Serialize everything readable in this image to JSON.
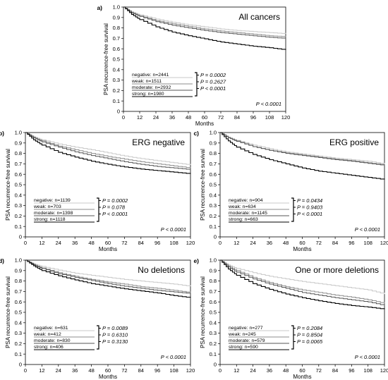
{
  "chart_data": [
    {
      "type": "line",
      "panel_label": "a)",
      "title": "All cancers",
      "xlabel": "Months",
      "ylabel": "PSA recurrence-free survival",
      "xlim": [
        0,
        120
      ],
      "ylim": [
        0,
        1.0
      ],
      "xticks": [
        "0",
        "12",
        "24",
        "36",
        "48",
        "60",
        "72",
        "84",
        "96",
        "108",
        "120"
      ],
      "yticks": [
        "0",
        "0.1",
        "0.2",
        "0.3",
        "0.4",
        "0.5",
        "0.6",
        "0.7",
        "0.8",
        "0.9",
        "1.0"
      ],
      "grid": false,
      "legend_position": "bottom-left",
      "overall_p": "P < 0.0001",
      "series": [
        {
          "name": "negative: n=2441",
          "color": "#c8c8c8",
          "x": [
            0,
            6,
            12,
            24,
            36,
            48,
            60,
            72,
            84,
            96,
            108,
            120
          ],
          "y": [
            1.0,
            0.955,
            0.925,
            0.885,
            0.855,
            0.83,
            0.81,
            0.79,
            0.775,
            0.765,
            0.755,
            0.745
          ]
        },
        {
          "name": "weak: n=1511",
          "color": "#8c8c8c",
          "x": [
            0,
            6,
            12,
            24,
            36,
            48,
            60,
            72,
            84,
            96,
            108,
            120
          ],
          "y": [
            1.0,
            0.95,
            0.915,
            0.87,
            0.84,
            0.815,
            0.79,
            0.77,
            0.755,
            0.74,
            0.725,
            0.715
          ]
        },
        {
          "name": "moderate: n=2932",
          "color": "#555555",
          "x": [
            0,
            6,
            12,
            24,
            36,
            48,
            60,
            72,
            84,
            96,
            108,
            120
          ],
          "y": [
            1.0,
            0.945,
            0.91,
            0.86,
            0.825,
            0.8,
            0.775,
            0.755,
            0.74,
            0.725,
            0.71,
            0.7
          ]
        },
        {
          "name": "strong: n=1980",
          "color": "#000000",
          "x": [
            0,
            6,
            12,
            24,
            36,
            48,
            60,
            72,
            84,
            96,
            108,
            120
          ],
          "y": [
            1.0,
            0.93,
            0.88,
            0.81,
            0.76,
            0.725,
            0.695,
            0.665,
            0.645,
            0.625,
            0.61,
            0.59
          ]
        }
      ],
      "pairwise_p": [
        "P = 0.0002",
        "P = 0.2627",
        "P < 0.0001"
      ]
    },
    {
      "type": "line",
      "panel_label": "b)",
      "title": "ERG negative",
      "xlabel": "Months",
      "ylabel": "PSA recurrence-free survival",
      "xlim": [
        0,
        120
      ],
      "ylim": [
        0,
        1.0
      ],
      "xticks": [
        "0",
        "12",
        "24",
        "36",
        "48",
        "60",
        "72",
        "84",
        "96",
        "108",
        "120"
      ],
      "yticks": [
        "0",
        "0.1",
        "0.2",
        "0.3",
        "0.4",
        "0.5",
        "0.6",
        "0.7",
        "0.8",
        "0.9",
        "1.0"
      ],
      "grid": false,
      "legend_position": "bottom-left",
      "overall_p": "P < 0.0001",
      "series": [
        {
          "name": "negative: n=1139",
          "color": "#c8c8c8",
          "x": [
            0,
            6,
            12,
            24,
            36,
            48,
            60,
            72,
            84,
            96,
            108,
            120
          ],
          "y": [
            1.0,
            0.96,
            0.93,
            0.89,
            0.86,
            0.835,
            0.805,
            0.775,
            0.75,
            0.73,
            0.71,
            0.69
          ]
        },
        {
          "name": "weak: n=703",
          "color": "#8c8c8c",
          "x": [
            0,
            6,
            12,
            24,
            36,
            48,
            60,
            72,
            84,
            96,
            108,
            120
          ],
          "y": [
            1.0,
            0.955,
            0.92,
            0.87,
            0.835,
            0.8,
            0.77,
            0.745,
            0.72,
            0.7,
            0.68,
            0.66
          ]
        },
        {
          "name": "moderate: n=1398",
          "color": "#555555",
          "x": [
            0,
            6,
            12,
            24,
            36,
            48,
            60,
            72,
            84,
            96,
            108,
            120
          ],
          "y": [
            1.0,
            0.95,
            0.91,
            0.86,
            0.815,
            0.78,
            0.75,
            0.72,
            0.695,
            0.675,
            0.66,
            0.645
          ]
        },
        {
          "name": "strong: n=1118",
          "color": "#000000",
          "x": [
            0,
            6,
            12,
            24,
            36,
            48,
            60,
            72,
            84,
            96,
            108,
            120
          ],
          "y": [
            1.0,
            0.93,
            0.88,
            0.81,
            0.765,
            0.725,
            0.695,
            0.67,
            0.65,
            0.635,
            0.62,
            0.605
          ]
        }
      ],
      "pairwise_p": [
        "P = 0.0002",
        "P = 0.078",
        "P < 0.0001"
      ]
    },
    {
      "type": "line",
      "panel_label": "c)",
      "title": "ERG positive",
      "xlabel": "Months",
      "ylabel": "PSA recurrence-free survival",
      "xlim": [
        0,
        120
      ],
      "ylim": [
        0,
        1.0
      ],
      "xticks": [
        "0",
        "12",
        "24",
        "36",
        "48",
        "60",
        "72",
        "84",
        "96",
        "108",
        "120"
      ],
      "yticks": [
        "0",
        "0.1",
        "0.2",
        "0.3",
        "0.4",
        "0.5",
        "0.6",
        "0.7",
        "0.8",
        "0.9",
        "1.0"
      ],
      "grid": false,
      "legend_position": "bottom-left",
      "overall_p": "P < 0.0001",
      "series": [
        {
          "name": "negative: n=904",
          "color": "#c8c8c8",
          "x": [
            0,
            6,
            12,
            24,
            36,
            48,
            60,
            72,
            84,
            96,
            108,
            120
          ],
          "y": [
            1.0,
            0.955,
            0.925,
            0.88,
            0.845,
            0.815,
            0.795,
            0.775,
            0.755,
            0.74,
            0.725,
            0.7
          ]
        },
        {
          "name": "weak: n=634",
          "color": "#8c8c8c",
          "x": [
            0,
            6,
            12,
            24,
            36,
            48,
            60,
            72,
            84,
            96,
            108,
            120
          ],
          "y": [
            1.0,
            0.955,
            0.92,
            0.865,
            0.83,
            0.805,
            0.785,
            0.765,
            0.745,
            0.73,
            0.71,
            0.69
          ]
        },
        {
          "name": "moderate: n=1145",
          "color": "#555555",
          "x": [
            0,
            6,
            12,
            24,
            36,
            48,
            60,
            72,
            84,
            96,
            108,
            120
          ],
          "y": [
            1.0,
            0.95,
            0.915,
            0.865,
            0.83,
            0.8,
            0.78,
            0.76,
            0.74,
            0.725,
            0.705,
            0.685
          ]
        },
        {
          "name": "strong: n=663",
          "color": "#000000",
          "x": [
            0,
            6,
            12,
            24,
            36,
            48,
            60,
            72,
            84,
            96,
            108,
            120
          ],
          "y": [
            1.0,
            0.92,
            0.86,
            0.79,
            0.74,
            0.7,
            0.66,
            0.63,
            0.61,
            0.59,
            0.57,
            0.55
          ]
        }
      ],
      "pairwise_p": [
        "P = 0.0434",
        "P = 0.9403",
        "P < 0.0001"
      ]
    },
    {
      "type": "line",
      "panel_label": "d)",
      "title": "No deletions",
      "xlabel": "Months",
      "ylabel": "PSA recurrence-free survival",
      "xlim": [
        0,
        120
      ],
      "ylim": [
        0,
        1.0
      ],
      "xticks": [
        "0",
        "12",
        "24",
        "36",
        "48",
        "60",
        "72",
        "84",
        "96",
        "108",
        "120"
      ],
      "yticks": [
        "0",
        "0.1",
        "0.2",
        "0.3",
        "0.4",
        "0.5",
        "0.6",
        "0.7",
        "0.8",
        "0.9",
        "1.0"
      ],
      "grid": false,
      "legend_position": "bottom-left",
      "overall_p": "P < 0.0001",
      "series": [
        {
          "name": "negative: n=631",
          "color": "#c8c8c8",
          "x": [
            0,
            6,
            12,
            24,
            36,
            48,
            60,
            72,
            84,
            96,
            108,
            120
          ],
          "y": [
            1.0,
            0.965,
            0.94,
            0.905,
            0.875,
            0.855,
            0.835,
            0.815,
            0.8,
            0.785,
            0.77,
            0.75
          ]
        },
        {
          "name": "weak: n=412",
          "color": "#8c8c8c",
          "x": [
            0,
            6,
            12,
            24,
            36,
            48,
            60,
            72,
            84,
            96,
            108,
            120
          ],
          "y": [
            1.0,
            0.96,
            0.925,
            0.88,
            0.845,
            0.815,
            0.79,
            0.77,
            0.745,
            0.73,
            0.71,
            0.69
          ]
        },
        {
          "name": "moderate: n=830",
          "color": "#555555",
          "x": [
            0,
            6,
            12,
            24,
            36,
            48,
            60,
            72,
            84,
            96,
            108,
            120
          ],
          "y": [
            1.0,
            0.955,
            0.92,
            0.87,
            0.835,
            0.805,
            0.775,
            0.75,
            0.73,
            0.71,
            0.695,
            0.68
          ]
        },
        {
          "name": "strong: n=406",
          "color": "#000000",
          "x": [
            0,
            6,
            12,
            24,
            36,
            48,
            60,
            72,
            84,
            96,
            108,
            120
          ],
          "y": [
            1.0,
            0.945,
            0.9,
            0.85,
            0.81,
            0.775,
            0.75,
            0.725,
            0.705,
            0.685,
            0.66,
            0.64
          ]
        }
      ],
      "pairwise_p": [
        "P = 0.0089",
        "P = 0.6310",
        "P = 0.3130"
      ]
    },
    {
      "type": "line",
      "panel_label": "e)",
      "title": "One or more deletions",
      "xlabel": "Months",
      "ylabel": "PSA recurrence-free survival",
      "xlim": [
        0,
        120
      ],
      "ylim": [
        0,
        1.0
      ],
      "xticks": [
        "0",
        "12",
        "24",
        "36",
        "48",
        "60",
        "72",
        "84",
        "96",
        "108",
        "120"
      ],
      "yticks": [
        "0",
        "0.1",
        "0.2",
        "0.3",
        "0.4",
        "0.5",
        "0.6",
        "0.7",
        "0.8",
        "0.9",
        "1.0"
      ],
      "grid": false,
      "legend_position": "bottom-left",
      "overall_p": "P < 0.0001",
      "series": [
        {
          "name": "negative: n=277",
          "color": "#c8c8c8",
          "x": [
            0,
            6,
            12,
            24,
            36,
            48,
            60,
            72,
            84,
            96,
            108,
            120
          ],
          "y": [
            1.0,
            0.955,
            0.92,
            0.88,
            0.845,
            0.82,
            0.795,
            0.775,
            0.755,
            0.735,
            0.715,
            0.675
          ]
        },
        {
          "name": "weak: n=245",
          "color": "#8c8c8c",
          "x": [
            0,
            6,
            12,
            24,
            36,
            48,
            60,
            72,
            84,
            96,
            108,
            120
          ],
          "y": [
            1.0,
            0.945,
            0.9,
            0.835,
            0.785,
            0.745,
            0.715,
            0.69,
            0.665,
            0.645,
            0.62,
            0.585
          ]
        },
        {
          "name": "moderate: n=579",
          "color": "#555555",
          "x": [
            0,
            6,
            12,
            24,
            36,
            48,
            60,
            72,
            84,
            96,
            108,
            120
          ],
          "y": [
            1.0,
            0.935,
            0.885,
            0.82,
            0.77,
            0.73,
            0.69,
            0.665,
            0.64,
            0.62,
            0.6,
            0.565
          ]
        },
        {
          "name": "strong: n=590",
          "color": "#000000",
          "x": [
            0,
            6,
            12,
            24,
            36,
            48,
            60,
            72,
            84,
            96,
            108,
            120
          ],
          "y": [
            1.0,
            0.915,
            0.855,
            0.775,
            0.72,
            0.675,
            0.64,
            0.61,
            0.585,
            0.565,
            0.55,
            0.53
          ]
        }
      ],
      "pairwise_p": [
        "P = 0.2084",
        "P = 0.8504",
        "P = 0.0065"
      ]
    }
  ]
}
